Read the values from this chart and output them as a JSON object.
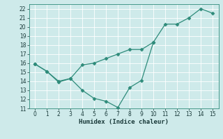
{
  "line1_x": [
    0,
    1,
    2,
    3,
    4,
    5,
    6,
    7,
    8,
    9,
    10,
    11,
    12,
    13,
    14,
    15
  ],
  "line1_y": [
    15.9,
    15.1,
    14.0,
    14.3,
    15.8,
    16.0,
    16.5,
    17.0,
    17.5,
    17.5,
    18.3,
    20.3,
    20.3,
    21.0,
    22.0,
    21.5
  ],
  "line2_x": [
    0,
    1,
    2,
    3,
    4,
    5,
    6,
    7,
    8,
    9,
    10
  ],
  "line2_y": [
    15.9,
    15.1,
    13.9,
    14.3,
    13.0,
    12.1,
    11.8,
    11.1,
    13.3,
    14.1,
    18.3
  ],
  "line_color": "#2e8b7a",
  "bg_color": "#ceeaea",
  "grid_color": "#ffffff",
  "xlabel": "Humidex (Indice chaleur)",
  "xlim": [
    -0.5,
    15.5
  ],
  "ylim": [
    11,
    22.5
  ],
  "yticks": [
    11,
    12,
    13,
    14,
    15,
    16,
    17,
    18,
    19,
    20,
    21,
    22
  ],
  "xticks": [
    0,
    1,
    2,
    3,
    4,
    5,
    6,
    7,
    8,
    9,
    10,
    11,
    12,
    13,
    14,
    15
  ],
  "tick_fontsize": 5.5,
  "xlabel_fontsize": 6.5
}
